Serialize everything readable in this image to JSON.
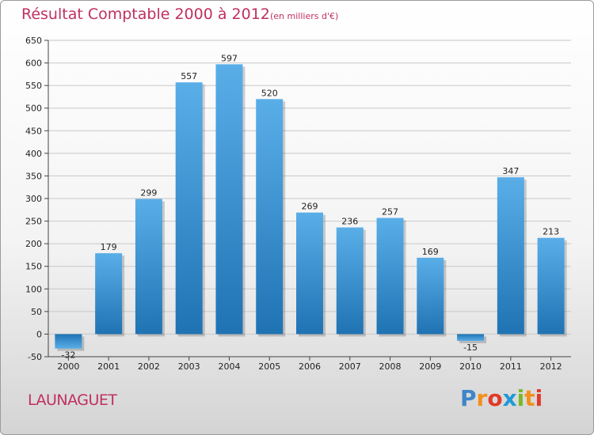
{
  "header": {
    "title": "Résultat Comptable 2000 à 2012",
    "subtitle": "(en milliers d'€)"
  },
  "footer": {
    "commune": "LAUNAGUET",
    "brand": "Proxiti"
  },
  "colors": {
    "title": "#c0305e",
    "bar_top": "#5aaee8",
    "bar_bottom": "#1f73b3",
    "grid": "#c8c8c8"
  },
  "chart_data": {
    "type": "bar",
    "title": "Résultat Comptable 2000 à 2012",
    "subtitle": "(en milliers d'€)",
    "xlabel": "",
    "ylabel": "",
    "categories": [
      "2000",
      "2001",
      "2002",
      "2003",
      "2004",
      "2005",
      "2006",
      "2007",
      "2008",
      "2009",
      "2010",
      "2011",
      "2012"
    ],
    "values": [
      -32,
      179,
      299,
      557,
      597,
      520,
      269,
      236,
      257,
      169,
      -15,
      347,
      213
    ],
    "ylim": [
      -50,
      650
    ],
    "yticks": [
      -50,
      0,
      50,
      100,
      150,
      200,
      250,
      300,
      350,
      400,
      450,
      500,
      550,
      600,
      650
    ],
    "grid": true,
    "legend": "none"
  }
}
